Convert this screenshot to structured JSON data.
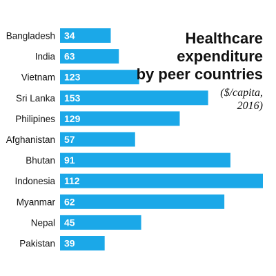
{
  "chart_data": {
    "type": "bar",
    "orientation": "horizontal",
    "title_lines": [
      "Healthcare",
      "expenditure",
      "by peer countries"
    ],
    "subtitle_lines": [
      "($/capita,",
      "2016)"
    ],
    "categories": [
      "Bangladesh",
      "India",
      "Vietnam",
      "Sri Lanka",
      "Philipines",
      "Afghanistan",
      "Bhutan",
      "Indonesia",
      "Myanmar",
      "Nepal",
      "Pakistan"
    ],
    "value_labels": [
      "34",
      "63",
      "123",
      "153",
      "129",
      "57",
      "91",
      "112",
      "62",
      "45",
      "39"
    ],
    "values": [
      34,
      63,
      123,
      153,
      129,
      57,
      91,
      112,
      62,
      45,
      39
    ],
    "bar_lengths": [
      0.25,
      0.29,
      0.39,
      0.73,
      0.59,
      0.37,
      0.84,
      1.0,
      0.81,
      0.4,
      0.22
    ],
    "bar_color": "#1ba8e8",
    "value_label_color": "#ffffff",
    "title_color": "#111111"
  }
}
